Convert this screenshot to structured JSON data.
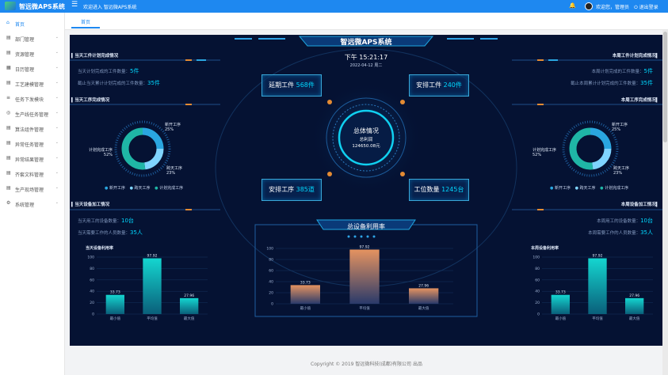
{
  "topbar": {
    "app_title": "智远微APS系统",
    "welcome": "欢迎进入 智远微APS系统",
    "user": "欢迎您，管理员",
    "logout": "退出登录"
  },
  "sidebar": {
    "items": [
      {
        "label": "首页",
        "icon": "home-icon"
      },
      {
        "label": "部门管理",
        "icon": "department-icon"
      },
      {
        "label": "资源管理",
        "icon": "resource-icon"
      },
      {
        "label": "日历管理",
        "icon": "calendar-icon"
      },
      {
        "label": "工艺建模管理",
        "icon": "process-icon"
      },
      {
        "label": "任务下发模块",
        "icon": "task-icon"
      },
      {
        "label": "生产线任务管理",
        "icon": "line-icon"
      },
      {
        "label": "算法组件管理",
        "icon": "algorithm-icon"
      },
      {
        "label": "异常任务管理",
        "icon": "exception-icon"
      },
      {
        "label": "异常结果管理",
        "icon": "result-icon"
      },
      {
        "label": "齐套文料管理",
        "icon": "material-icon"
      },
      {
        "label": "生产现场管理",
        "icon": "site-icon"
      },
      {
        "label": "系统管理",
        "icon": "system-icon"
      }
    ]
  },
  "tabs": {
    "home": "首页"
  },
  "dashboard": {
    "title": "智远微APS系统",
    "time": "下午 15:21:17",
    "date": "2022-04-12 周二",
    "left_top": {
      "header": "当天工件计划完成情况",
      "planned_label": "当天计划完成的工件数量：",
      "planned_value": "5件",
      "accumulated_label": "截止当天累计计划完成的工件数量：",
      "accumulated_value": "35件"
    },
    "right_top": {
      "header": "本周工件计划完成情况",
      "planned_label": "本周计划完成的工件数量：",
      "planned_value": "5件",
      "accumulated_label": "截止本周累计计划完成的工件数量：",
      "accumulated_value": "35件"
    },
    "left_mid": {
      "header": "当天工序完成情况",
      "label_new": "新开工序",
      "pct_new": "25%",
      "label_plan": "计划完成工序",
      "pct_plan": "52%",
      "label_cross": "跨天工序",
      "pct_cross": "23%",
      "legend": [
        "新开工序",
        "跨天工序",
        "计划完成工序"
      ]
    },
    "right_mid": {
      "header": "本周工序完成情况",
      "label_new": "新开工序",
      "pct_new": "25%",
      "label_plan": "计划完成工序",
      "pct_plan": "52%",
      "label_cross": "跨天工序",
      "pct_cross": "23%",
      "legend": [
        "新开工序",
        "跨天工序",
        "计划完成工序"
      ]
    },
    "center": {
      "delay_label": "延期工件",
      "delay_value": "568件",
      "arrange_label": "安排工件",
      "arrange_value": "240件",
      "process_label": "安排工序",
      "process_value": "385道",
      "workload_label": "工位数量",
      "workload_value": "1245台",
      "overall_title": "总体情况",
      "profit_label": "总利润",
      "profit_value": "124650.08元"
    },
    "left_bottom": {
      "header": "当天设备加工情况",
      "equip_label": "当天用工的设备数量：",
      "equip_value": "10台",
      "staff_label": "当天需要工作的人员数量：",
      "staff_value": "35人",
      "chart_title": "当天设备利用率"
    },
    "right_bottom": {
      "header": "本周设备加工情况",
      "equip_label": "本周用工的设备数量：",
      "equip_value": "10台",
      "staff_label": "本周需要工作的人员数量：",
      "staff_value": "35人",
      "chart_title": "本周设备利用率"
    },
    "center_bottom": {
      "title": "总设备利用率"
    }
  },
  "footer": "Copyright © 2019 智远微科技(成都)有限公司 出品",
  "colors": {
    "accent": "#1e88f0",
    "cyan": "#00d8ff",
    "teal": "#1fb6a6",
    "orange": "#d98a55",
    "bg": "#051233"
  },
  "chart_data": [
    {
      "type": "pie",
      "title": "当天工序完成情况",
      "categories": [
        "新开工序",
        "跨天工序",
        "计划完成工序"
      ],
      "values": [
        25,
        23,
        52
      ]
    },
    {
      "type": "pie",
      "title": "本周工序完成情况",
      "categories": [
        "新开工序",
        "跨天工序",
        "计划完成工序"
      ],
      "values": [
        25,
        23,
        52
      ]
    },
    {
      "type": "bar",
      "title": "当天设备利用率",
      "categories": [
        "最小值",
        "平均值",
        "最大值"
      ],
      "values": [
        33.73,
        97.92,
        27.96
      ],
      "ylim": [
        0,
        100
      ],
      "yticks": [
        0,
        20,
        40,
        60,
        80,
        100
      ]
    },
    {
      "type": "bar",
      "title": "总设备利用率",
      "categories": [
        "最小值",
        "平均值",
        "最大值"
      ],
      "values": [
        33.73,
        97.92,
        27.96
      ],
      "ylim": [
        0,
        100
      ],
      "yticks": [
        0,
        20,
        40,
        60,
        80,
        100
      ]
    },
    {
      "type": "bar",
      "title": "本周设备利用率",
      "categories": [
        "最小值",
        "平均值",
        "最大值"
      ],
      "values": [
        33.73,
        97.92,
        27.96
      ],
      "ylim": [
        0,
        100
      ],
      "yticks": [
        0,
        20,
        40,
        60,
        80,
        100
      ]
    }
  ]
}
